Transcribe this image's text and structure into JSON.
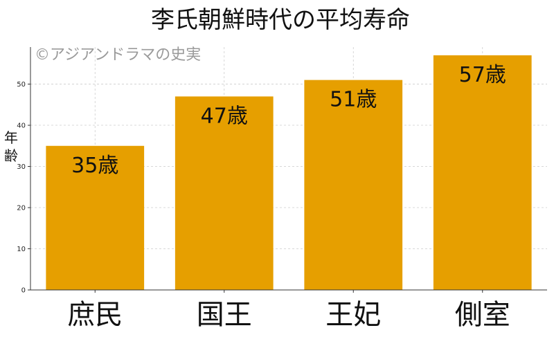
{
  "chart_data": {
    "type": "bar",
    "title": "李氏朝鮮時代の平均寿命",
    "watermark": "©アジアンドラマの史実",
    "ylabel": "年齢",
    "categories": [
      "庶民",
      "国王",
      "王妃",
      "側室"
    ],
    "values": [
      35,
      47,
      51,
      57
    ],
    "data_labels": [
      "35歳",
      "47歳",
      "51歳",
      "57歳"
    ],
    "ylim": [
      0,
      59
    ],
    "yticks": [
      0,
      10,
      20,
      30,
      40,
      50
    ],
    "grid": true,
    "bar_color": "#E69F00"
  }
}
